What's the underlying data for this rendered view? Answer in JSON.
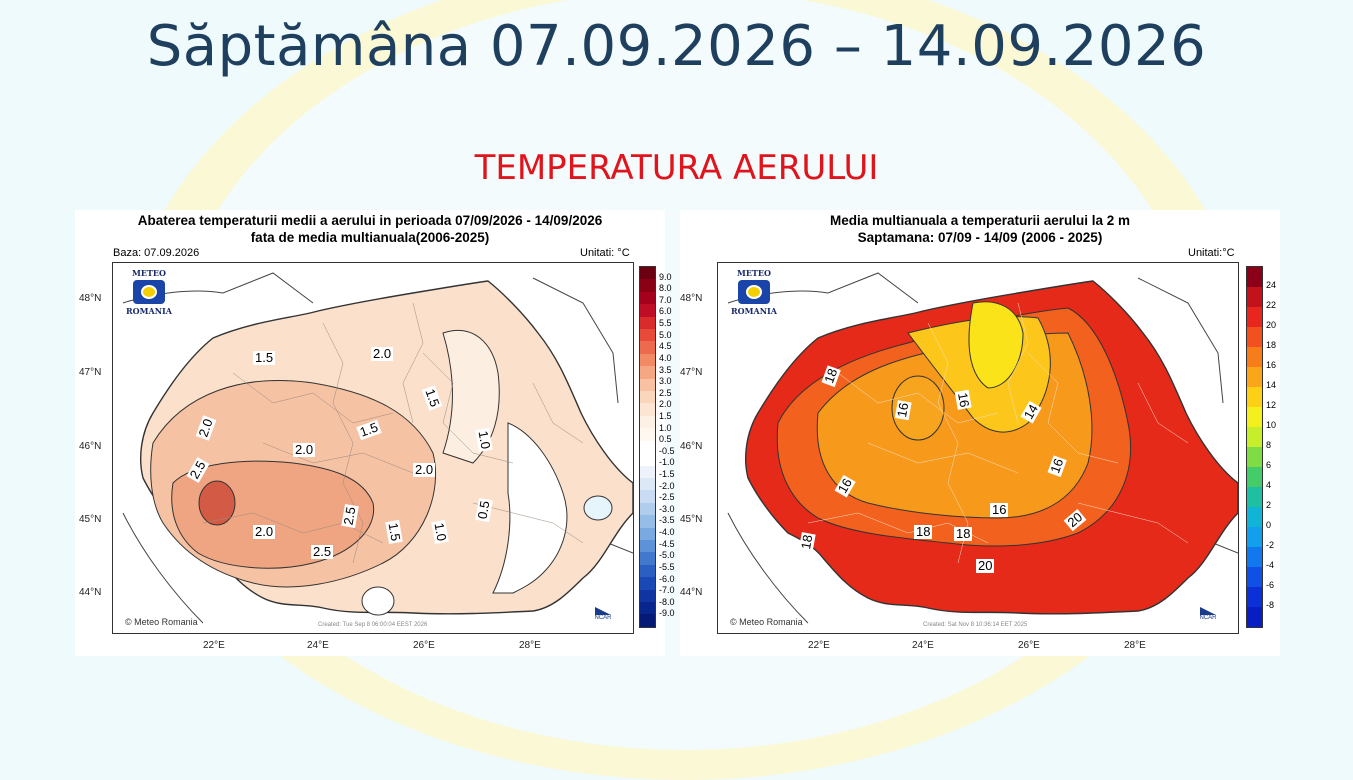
{
  "slide": {
    "title": "Săptămâna 07.09.2026 – 14.09.2026",
    "subtitle": "TEMPERATURA AERULUI"
  },
  "colors": {
    "title": "#1f3f5f",
    "subtitle": "#e0141c",
    "background": "#eefafc",
    "ellipse": "#fbf8d6"
  },
  "map_left": {
    "title_line1": "Abaterea temperaturii medii a aerului in perioada 07/09/2026 - 14/09/2026",
    "title_line2": "fata de media multianuala(2006-2025)",
    "base": "Baza: 07.09.2026",
    "units": "Unitati: °C",
    "logo_top": "METEO",
    "logo_bottom": "ROMANIA",
    "copyright": "© Meteo Romania",
    "created": "Created: Tue Sep  8 06:00:04 EEST 2026",
    "ncar": "NCAR",
    "lat_labels": [
      "48°N",
      "47°N",
      "46°N",
      "45°N",
      "44°N"
    ],
    "lon_labels": [
      "22°E",
      "24°E",
      "26°E",
      "28°E"
    ],
    "colorbar_labels": [
      "9.0",
      "8.0",
      "7.0",
      "6.0",
      "5.5",
      "5.0",
      "4.5",
      "4.0",
      "3.5",
      "3.0",
      "2.5",
      "2.0",
      "1.5",
      "1.0",
      "0.5",
      "-0.5",
      "-1.0",
      "-1.5",
      "-2.0",
      "-2.5",
      "-3.0",
      "-3.5",
      "-4.0",
      "-4.5",
      "-5.0",
      "-5.5",
      "-6.0",
      "-7.0",
      "-8.0",
      "-9.0"
    ],
    "colorbar_colors": [
      "#6b0010",
      "#8a0015",
      "#a5001c",
      "#c00d26",
      "#d92a2c",
      "#e84a3a",
      "#ee6a4e",
      "#f28a66",
      "#f5a784",
      "#f8c2a2",
      "#fad6bd",
      "#fce5d2",
      "#fdf0e4",
      "#fef8f1",
      "#ffffff",
      "#ffffff",
      "#eef3fb",
      "#dde8f7",
      "#c9dcf3",
      "#b1cdee",
      "#96bce8",
      "#7aa8e1",
      "#5e92d8",
      "#4279ce",
      "#2b60c2",
      "#1a48b4",
      "#1035a2",
      "#08268e",
      "#041a76"
    ],
    "contour_labels": [
      "1.5",
      "2.0",
      "1.5",
      "2.0",
      "1.5",
      "1.0",
      "2.0",
      "2.0",
      "2.5",
      "2.5",
      "2.0",
      "2.5",
      "1.5",
      "1.0",
      "0.5"
    ]
  },
  "map_right": {
    "title_line1": "Media multianuala a temperaturii aerului la 2 m",
    "title_line2": "Saptamana: 07/09 - 14/09 (2006 - 2025)",
    "units": "Unitati:°C",
    "logo_top": "METEO",
    "logo_bottom": "ROMANIA",
    "copyright": "© Meteo Romania",
    "created": "Created: Sat Nov  8 10:36:14 EET 2025",
    "ncar": "NCAR",
    "lat_labels": [
      "48°N",
      "47°N",
      "46°N",
      "45°N",
      "44°N"
    ],
    "lon_labels": [
      "22°E",
      "24°E",
      "26°E",
      "28°E"
    ],
    "colorbar_labels": [
      "24",
      "22",
      "20",
      "18",
      "16",
      "14",
      "12",
      "10",
      "8",
      "6",
      "4",
      "2",
      "0",
      "-2",
      "-4",
      "-6",
      "-8"
    ],
    "colorbar_colors": [
      "#8b0018",
      "#c4121c",
      "#e8261e",
      "#f2501e",
      "#f77c1a",
      "#fba51a",
      "#fdd016",
      "#f4f01e",
      "#c6ee2a",
      "#7fdc44",
      "#45cc6a",
      "#1fbfa2",
      "#12b4d6",
      "#12a0ee",
      "#1278ee",
      "#1050e6",
      "#0c30d8",
      "#081ec4"
    ],
    "contour_labels": [
      "18",
      "16",
      "16",
      "14",
      "16",
      "16",
      "16",
      "18",
      "18",
      "20",
      "20",
      "18"
    ]
  }
}
